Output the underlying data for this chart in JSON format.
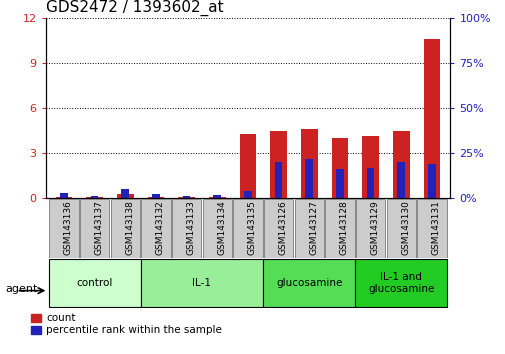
{
  "title": "GDS2472 / 1393602_at",
  "samples": [
    "GSM143136",
    "GSM143137",
    "GSM143138",
    "GSM143132",
    "GSM143133",
    "GSM143134",
    "GSM143135",
    "GSM143126",
    "GSM143127",
    "GSM143128",
    "GSM143129",
    "GSM143130",
    "GSM143131"
  ],
  "count_values": [
    0.05,
    0.05,
    0.25,
    0.05,
    0.05,
    0.05,
    4.3,
    4.45,
    4.6,
    4.0,
    4.15,
    4.45,
    10.6
  ],
  "percentile_values": [
    3.0,
    1.5,
    5.0,
    2.5,
    1.5,
    2.0,
    4.0,
    20.0,
    22.0,
    16.0,
    17.0,
    20.0,
    19.0
  ],
  "groups": [
    {
      "label": "control",
      "start": 0,
      "end": 3,
      "color": "#ccffcc"
    },
    {
      "label": "IL-1",
      "start": 3,
      "end": 7,
      "color": "#99ee99"
    },
    {
      "label": "glucosamine",
      "start": 7,
      "end": 10,
      "color": "#55dd55"
    },
    {
      "label": "IL-1 and\nglucosamine",
      "start": 10,
      "end": 13,
      "color": "#22cc22"
    }
  ],
  "ylim_left": [
    0,
    12
  ],
  "ylim_right": [
    0,
    100
  ],
  "yticks_left": [
    0,
    3,
    6,
    9,
    12
  ],
  "yticks_right": [
    0,
    25,
    50,
    75,
    100
  ],
  "bar_color_red": "#cc2222",
  "bar_color_blue": "#2222bb",
  "bar_width": 0.55,
  "blue_bar_width": 0.25,
  "agent_label": "agent",
  "legend_count": "count",
  "legend_percentile": "percentile rank within the sample",
  "title_fontsize": 11,
  "axis_label_color_left": "#cc2222",
  "axis_label_color_right": "#2222bb",
  "tick_bg_color": "#cccccc",
  "tick_bg_edge": "#888888"
}
